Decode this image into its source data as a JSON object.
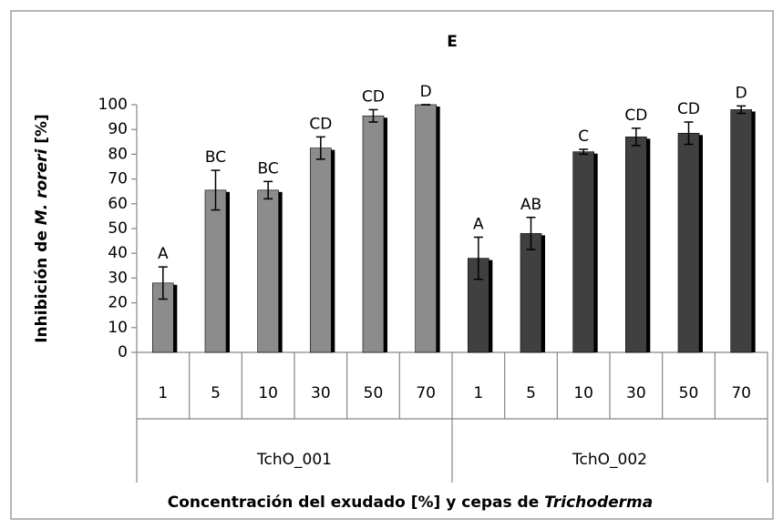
{
  "chart_data": {
    "type": "bar",
    "title": "E",
    "y_label": [
      "Inhibición de ",
      "M. roreri",
      " [%]"
    ],
    "x_label": [
      "Concentración del exudado [%] y cepas de ",
      "Trichoderma"
    ],
    "ylim": [
      0,
      100
    ],
    "yticks": [
      0,
      10,
      20,
      30,
      40,
      50,
      60,
      70,
      80,
      90,
      100
    ],
    "series": [
      {
        "name": "TchO_001",
        "color": "#8c8c8c",
        "categories": [
          "1",
          "5",
          "10",
          "30",
          "50",
          "70"
        ],
        "values": [
          28,
          65.5,
          65.5,
          82.5,
          95.5,
          100
        ],
        "errors": [
          6.5,
          8,
          3.5,
          4.5,
          2.5,
          0
        ],
        "letters": [
          "A",
          "BC",
          "BC",
          "CD",
          "CD",
          "D"
        ]
      },
      {
        "name": "TchO_002",
        "color": "#404040",
        "categories": [
          "1",
          "5",
          "10",
          "30",
          "50",
          "70"
        ],
        "values": [
          38,
          48,
          81,
          87,
          88.5,
          98
        ],
        "errors": [
          8.5,
          6.5,
          1,
          3.5,
          4.5,
          1.5
        ],
        "letters": [
          "A",
          "AB",
          "C",
          "CD",
          "CD",
          "D"
        ]
      }
    ]
  }
}
